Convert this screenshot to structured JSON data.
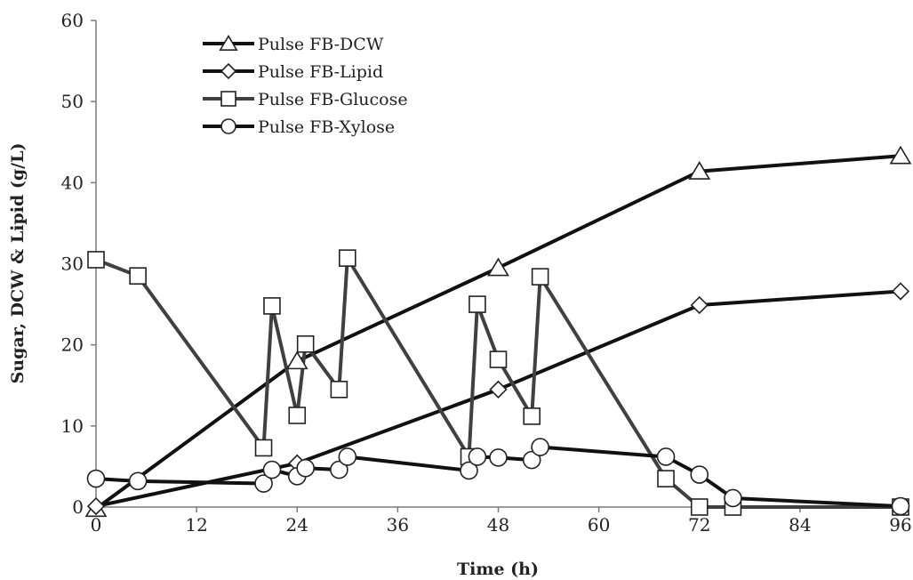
{
  "chart_data": {
    "type": "line",
    "title": "",
    "xlabel": "Time (h)",
    "ylabel": "Sugar, DCW & Lipid (g/L)",
    "xlim": [
      0,
      96
    ],
    "ylim": [
      0,
      60
    ],
    "xticks": [
      0,
      12,
      24,
      36,
      48,
      60,
      72,
      84,
      96
    ],
    "yticks": [
      0,
      10,
      20,
      30,
      40,
      50,
      60
    ],
    "grid": false,
    "legend_position": "top-left",
    "series": [
      {
        "name": "Pulse FB-DCW",
        "marker": "triangle",
        "color": "#111111",
        "x": [
          0,
          24,
          48,
          72,
          96
        ],
        "y": [
          -0.2,
          18.0,
          29.5,
          41.4,
          43.3
        ]
      },
      {
        "name": "Pulse FB-Lipid",
        "marker": "diamond",
        "color": "#111111",
        "x": [
          0,
          24,
          48,
          72,
          96
        ],
        "y": [
          0.1,
          5.4,
          14.5,
          24.9,
          26.6
        ]
      },
      {
        "name": "Pulse FB-Glucose",
        "marker": "square",
        "color": "#404040",
        "x": [
          0,
          5,
          20,
          21,
          24,
          25,
          29,
          30,
          44.5,
          45.5,
          48,
          52,
          53,
          68,
          72,
          76,
          96
        ],
        "y": [
          30.5,
          28.5,
          7.3,
          24.8,
          11.3,
          20.1,
          14.5,
          30.7,
          6.2,
          25.0,
          18.2,
          11.2,
          28.4,
          3.5,
          0,
          0,
          0
        ]
      },
      {
        "name": "Pulse FB-Xylose",
        "marker": "circle",
        "color": "#111111",
        "x": [
          0,
          5,
          20,
          21,
          24,
          25,
          29,
          30,
          44.5,
          45.5,
          48,
          52,
          53,
          68,
          72,
          76,
          96
        ],
        "y": [
          3.5,
          3.2,
          2.9,
          4.6,
          3.8,
          4.8,
          4.6,
          6.2,
          4.5,
          6.2,
          6.1,
          5.8,
          7.4,
          6.2,
          4.0,
          1.1,
          0.1
        ]
      }
    ]
  }
}
